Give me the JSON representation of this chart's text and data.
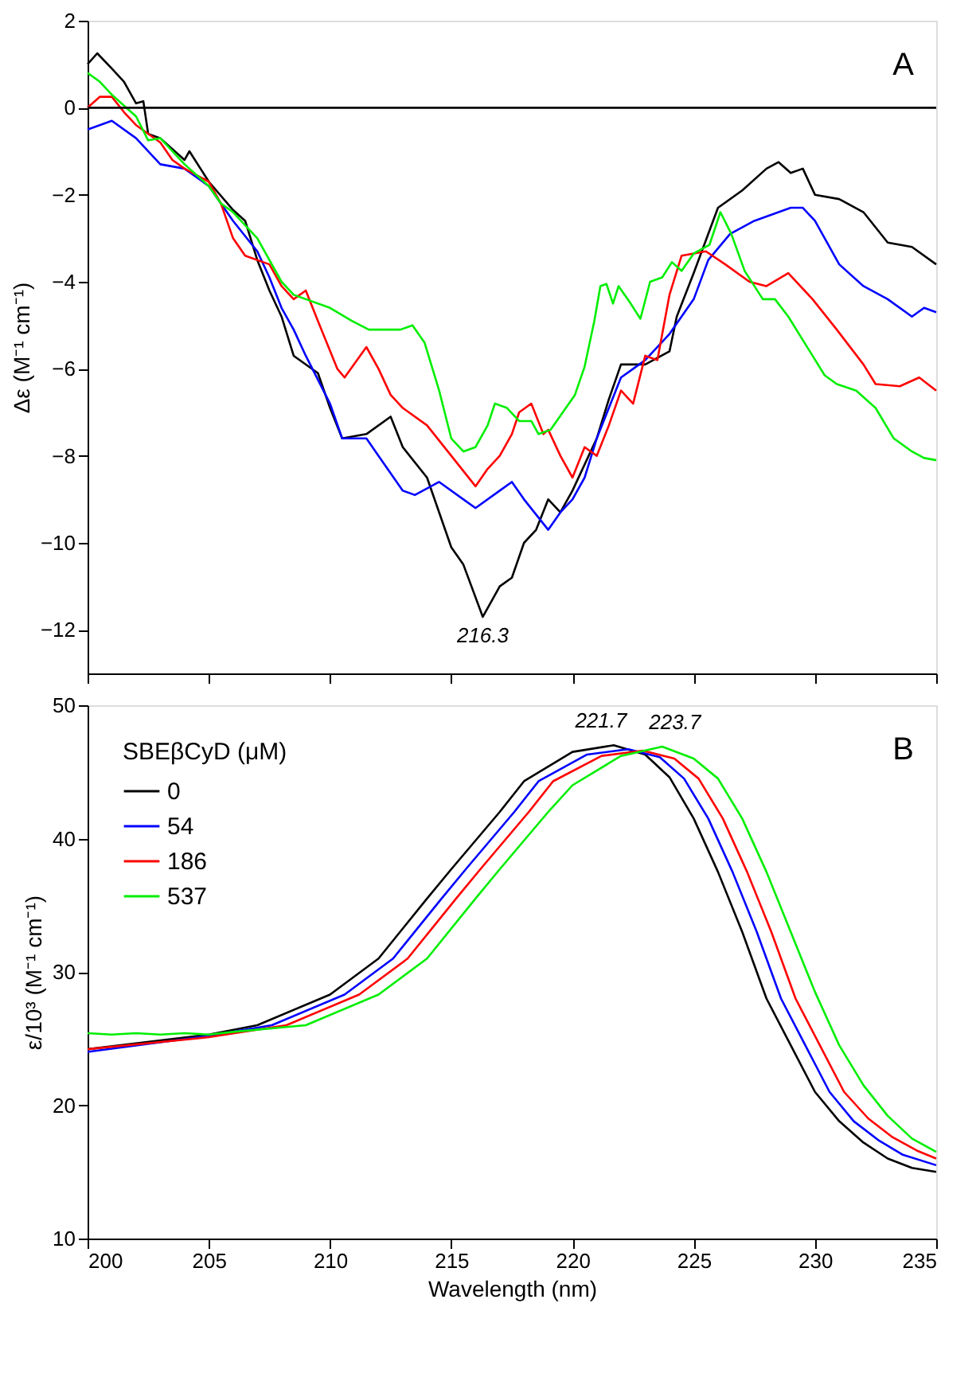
{
  "chart_data": [
    {
      "type": "line",
      "ylabel": "Δε (M⁻¹ cm⁻¹)",
      "xlim": [
        200,
        235
      ],
      "xticks": [
        200,
        205,
        210,
        215,
        220,
        225,
        230,
        235
      ],
      "ylim": [
        -13,
        2
      ],
      "yticks": [
        -12,
        -10,
        -8,
        -6,
        -4,
        -2,
        0,
        2
      ],
      "tick_labels": "y",
      "grid": false,
      "legend": false,
      "line_style": "solid",
      "marker": "none",
      "ref_lines": [
        {
          "axis": "y",
          "value": 0,
          "color": "#000000"
        }
      ],
      "annotations": [
        "A",
        {
          "text": "216.3",
          "x": 216.3,
          "y": -11.7
        }
      ],
      "series": [
        {
          "color": "#000000",
          "x": [
            200,
            200.4,
            201,
            201.5,
            202,
            202.3,
            202.5,
            203,
            204,
            204.2,
            205,
            206,
            206.5,
            207,
            207.5,
            208,
            208.5,
            209.5,
            210,
            210.5,
            211.5,
            212.5,
            213,
            214,
            214.5,
            215,
            215.5,
            216.3,
            217,
            217.5,
            218,
            218.5,
            219,
            219.5,
            220,
            221,
            221.5,
            222,
            223,
            224,
            224.3,
            225,
            226,
            227,
            228,
            228.5,
            229,
            229.5,
            230,
            231,
            232,
            233,
            234,
            235
          ],
          "values": [
            1.0,
            1.25,
            0.9,
            0.6,
            0.1,
            0.15,
            -0.6,
            -0.7,
            -1.2,
            -1.0,
            -1.7,
            -2.35,
            -2.6,
            -3.5,
            -4.2,
            -4.8,
            -5.7,
            -6.1,
            -6.9,
            -7.6,
            -7.5,
            -7.1,
            -7.8,
            -8.5,
            -9.3,
            -10.1,
            -10.5,
            -11.7,
            -11.0,
            -10.8,
            -10.0,
            -9.7,
            -9.0,
            -9.3,
            -8.8,
            -7.6,
            -6.7,
            -5.9,
            -5.9,
            -5.6,
            -4.8,
            -3.8,
            -2.3,
            -1.9,
            -1.4,
            -1.25,
            -1.5,
            -1.4,
            -2.0,
            -2.1,
            -2.4,
            -3.1,
            -3.2,
            -3.6
          ]
        },
        {
          "color": "#0000ff",
          "x": [
            200,
            201,
            202,
            203,
            204,
            205,
            206,
            207,
            207.5,
            208,
            208.5,
            209,
            210,
            210.5,
            211.5,
            212,
            213,
            213.5,
            214.5,
            215.5,
            216,
            217,
            217.5,
            218,
            219,
            219.5,
            220,
            220.5,
            221,
            222,
            222.5,
            223,
            224,
            225,
            225.6,
            226.5,
            227.5,
            228,
            229,
            229.5,
            230,
            231,
            232,
            233,
            234,
            234.5,
            235
          ],
          "values": [
            -0.5,
            -0.3,
            -0.7,
            -1.3,
            -1.4,
            -1.8,
            -2.6,
            -3.3,
            -3.9,
            -4.6,
            -5.1,
            -5.7,
            -6.8,
            -7.6,
            -7.6,
            -8.0,
            -8.8,
            -8.9,
            -8.6,
            -9.0,
            -9.2,
            -8.8,
            -8.6,
            -9.0,
            -9.7,
            -9.3,
            -9.0,
            -8.5,
            -7.6,
            -6.2,
            -6.0,
            -5.8,
            -5.2,
            -4.4,
            -3.5,
            -2.9,
            -2.6,
            -2.5,
            -2.3,
            -2.3,
            -2.6,
            -3.6,
            -4.1,
            -4.4,
            -4.8,
            -4.6,
            -4.7
          ]
        },
        {
          "color": "#ff0000",
          "x": [
            200,
            200.5,
            201,
            201.5,
            202,
            203,
            203.5,
            204,
            205,
            205.5,
            206,
            206.5,
            207.5,
            208,
            208.5,
            209,
            209.5,
            210.3,
            210.6,
            211.5,
            212,
            212.5,
            213,
            214,
            215,
            216,
            216.5,
            217,
            217.5,
            217.8,
            218.3,
            218.8,
            219,
            219.5,
            220,
            220.5,
            221,
            221.5,
            222,
            222.5,
            223,
            223.5,
            224,
            224.5,
            225.5,
            226.3,
            227.3,
            228,
            228.9,
            229.9,
            230.9,
            232,
            232.5,
            233.5,
            234.3,
            235
          ],
          "values": [
            0.0,
            0.25,
            0.25,
            -0.1,
            -0.4,
            -0.8,
            -1.2,
            -1.4,
            -1.7,
            -2.2,
            -3.0,
            -3.4,
            -3.6,
            -4.1,
            -4.4,
            -4.2,
            -4.9,
            -6.0,
            -6.2,
            -5.5,
            -6.0,
            -6.6,
            -6.9,
            -7.3,
            -8.0,
            -8.7,
            -8.3,
            -8.0,
            -7.5,
            -7.0,
            -6.8,
            -7.5,
            -7.4,
            -8.0,
            -8.5,
            -7.8,
            -8.0,
            -7.3,
            -6.5,
            -6.8,
            -5.7,
            -5.8,
            -4.3,
            -3.4,
            -3.3,
            -3.6,
            -4.0,
            -4.1,
            -3.8,
            -4.4,
            -5.1,
            -5.9,
            -6.35,
            -6.4,
            -6.2,
            -6.5
          ]
        },
        {
          "color": "#00ee00",
          "x": [
            200,
            200.5,
            201,
            202,
            202.5,
            203,
            204,
            205,
            205.5,
            206,
            207,
            208,
            208.5,
            210,
            210.9,
            211.6,
            212.9,
            213.4,
            213.9,
            214.5,
            215.0,
            215.5,
            216.0,
            216.5,
            216.8,
            217.3,
            217.8,
            218.3,
            218.6,
            219.1,
            219.6,
            220.1,
            220.5,
            220.9,
            221.15,
            221.4,
            221.67,
            221.9,
            222.4,
            222.8,
            223.2,
            223.7,
            224.1,
            224.5,
            225.0,
            225.65,
            226.1,
            226.55,
            227.1,
            227.85,
            228.35,
            228.9,
            229.9,
            230.4,
            230.9,
            231.7,
            232.5,
            233.25,
            234.0,
            234.5,
            235
          ],
          "values": [
            0.8,
            0.6,
            0.3,
            -0.2,
            -0.75,
            -0.7,
            -1.3,
            -1.8,
            -2.2,
            -2.4,
            -3.0,
            -4.0,
            -4.3,
            -4.6,
            -4.9,
            -5.1,
            -5.1,
            -5.0,
            -5.4,
            -6.5,
            -7.6,
            -7.9,
            -7.8,
            -7.3,
            -6.8,
            -6.9,
            -7.2,
            -7.2,
            -7.5,
            -7.4,
            -7.0,
            -6.6,
            -5.95,
            -4.9,
            -4.1,
            -4.05,
            -4.5,
            -4.1,
            -4.5,
            -4.85,
            -4.0,
            -3.9,
            -3.55,
            -3.75,
            -3.35,
            -3.15,
            -2.4,
            -2.9,
            -3.75,
            -4.4,
            -4.4,
            -4.8,
            -5.7,
            -6.15,
            -6.35,
            -6.5,
            -6.9,
            -7.6,
            -7.9,
            -8.05,
            -8.1
          ]
        }
      ]
    },
    {
      "type": "line",
      "xlabel": "Wavelength (nm)",
      "ylabel": "ε/10³ (M⁻¹ cm⁻¹)",
      "legend_title": "SBEβCyD (μM)",
      "legend": "top left",
      "xlim": [
        200,
        235
      ],
      "xticks": [
        200,
        205,
        210,
        215,
        220,
        225,
        230,
        235
      ],
      "ylim": [
        10,
        50
      ],
      "yticks": [
        10,
        20,
        30,
        40,
        50
      ],
      "grid": false,
      "line_style": "solid",
      "marker": "none",
      "annotations": [
        "B",
        {
          "text": "221.7",
          "x": 221.7,
          "y": 47.0
        },
        {
          "text": "223.7",
          "x": 223.7,
          "y": 46.9
        }
      ],
      "series": [
        {
          "name": "0",
          "color": "#000000",
          "x": [
            200,
            205,
            207,
            210,
            212,
            214,
            215,
            217,
            218,
            220,
            221.7,
            223,
            224,
            225,
            226,
            227,
            228,
            229,
            230,
            231,
            232,
            233,
            234,
            235
          ],
          "values": [
            24.2,
            25.3,
            26.0,
            28.3,
            31.0,
            35.5,
            37.7,
            42.0,
            44.3,
            46.5,
            47.0,
            46.3,
            44.6,
            41.5,
            37.5,
            33.0,
            28.0,
            24.5,
            21.0,
            18.8,
            17.2,
            16.0,
            15.3,
            15.0
          ]
        },
        {
          "name": "54",
          "color": "#0000ff",
          "x": [
            200,
            205,
            207.6,
            210.6,
            212.6,
            214.6,
            215.6,
            217.6,
            218.6,
            220.6,
            222.3,
            223.6,
            224.6,
            225.6,
            226.6,
            227.6,
            228.6,
            229.6,
            230.6,
            231.6,
            232.6,
            233.6,
            235
          ],
          "values": [
            24.0,
            25.2,
            26.0,
            28.3,
            31.0,
            35.5,
            37.7,
            42.0,
            44.3,
            46.3,
            46.7,
            46.1,
            44.5,
            41.5,
            37.5,
            33.0,
            28.0,
            24.5,
            21.0,
            18.8,
            17.4,
            16.3,
            15.5
          ]
        },
        {
          "name": "186",
          "color": "#ff0000",
          "x": [
            200,
            205,
            208.2,
            211.2,
            213.2,
            215.2,
            216.2,
            218.2,
            219.2,
            221.2,
            222.9,
            224.2,
            225.2,
            226.2,
            227.2,
            228.2,
            229.2,
            230.2,
            231.2,
            232.2,
            233.2,
            234.2,
            235
          ],
          "values": [
            24.2,
            25.1,
            26.0,
            28.3,
            31.0,
            35.5,
            37.7,
            42.0,
            44.3,
            46.2,
            46.6,
            46.0,
            44.5,
            41.5,
            37.5,
            33.0,
            28.0,
            24.5,
            21.0,
            19.0,
            17.6,
            16.6,
            16.0
          ]
        },
        {
          "name": "537",
          "color": "#00ee00",
          "x": [
            200,
            201,
            202,
            203,
            204,
            205,
            206,
            209,
            212,
            214,
            216,
            217,
            219,
            220,
            222,
            223.7,
            225,
            226,
            227,
            228,
            229,
            230,
            231,
            232,
            233,
            234,
            235
          ],
          "values": [
            25.4,
            25.3,
            25.4,
            25.3,
            25.4,
            25.3,
            25.5,
            26.0,
            28.3,
            31.0,
            35.5,
            37.7,
            42.0,
            44.0,
            46.2,
            46.9,
            46.0,
            44.5,
            41.5,
            37.5,
            33.0,
            28.5,
            24.5,
            21.5,
            19.2,
            17.5,
            16.5
          ]
        }
      ]
    }
  ]
}
